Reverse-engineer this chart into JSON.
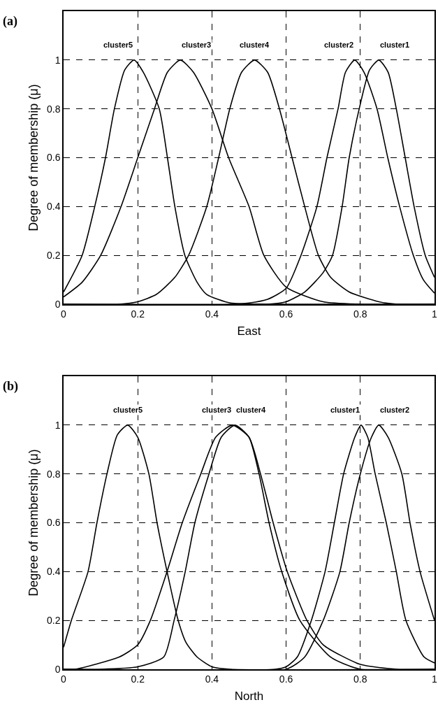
{
  "chart_data": [
    {
      "type": "line",
      "title": "(a)",
      "xlabel": "East",
      "ylabel": "Degree of membership (μ)",
      "xlim": [
        0,
        1
      ],
      "ylim": [
        0,
        1.2
      ],
      "xticks": [
        0,
        0.2,
        0.4,
        0.6,
        0.8,
        1
      ],
      "yticks": [
        0,
        0.2,
        0.4,
        0.6,
        0.8,
        1
      ],
      "grid": true,
      "marker": "none",
      "line_style": "solid",
      "series": [
        {
          "name": "cluster5",
          "color": "#000000",
          "x": [
            0,
            0.05,
            0.084,
            0.113,
            0.137,
            0.165,
            0.19,
            0.215,
            0.258,
            0.28,
            0.3,
            0.327,
            0.36,
            0.386,
            0.45,
            0.55,
            1
          ],
          "values": [
            0.05,
            0.2,
            0.4,
            0.6,
            0.8,
            0.96,
            1,
            0.95,
            0.8,
            0.6,
            0.4,
            0.2,
            0.09,
            0.04,
            0.005,
            0,
            0
          ]
        },
        {
          "name": "cluster3",
          "color": "#000000",
          "x": [
            0,
            0.05,
            0.1,
            0.155,
            0.2,
            0.245,
            0.28,
            0.315,
            0.35,
            0.4,
            0.445,
            0.5,
            0.54,
            0.6,
            0.7,
            0.8,
            1
          ],
          "values": [
            0.03,
            0.09,
            0.2,
            0.4,
            0.6,
            0.8,
            0.95,
            1,
            0.95,
            0.8,
            0.6,
            0.4,
            0.2,
            0.07,
            0.01,
            0,
            0
          ]
        },
        {
          "name": "cluster4",
          "color": "#000000",
          "x": [
            0,
            0.15,
            0.2,
            0.25,
            0.3,
            0.337,
            0.386,
            0.418,
            0.448,
            0.48,
            0.515,
            0.55,
            0.582,
            0.616,
            0.65,
            0.687,
            0.72,
            0.77,
            0.85,
            0.9,
            1
          ],
          "values": [
            0,
            0,
            0.01,
            0.04,
            0.11,
            0.2,
            0.4,
            0.6,
            0.8,
            0.95,
            1,
            0.95,
            0.8,
            0.6,
            0.4,
            0.2,
            0.11,
            0.05,
            0.01,
            0,
            0
          ]
        },
        {
          "name": "cluster2",
          "color": "#000000",
          "x": [
            0,
            0.45,
            0.5,
            0.55,
            0.6,
            0.64,
            0.683,
            0.71,
            0.74,
            0.76,
            0.785,
            0.81,
            0.845,
            0.874,
            0.906,
            0.943,
            0.97,
            1
          ],
          "values": [
            0,
            0,
            0.005,
            0.02,
            0.065,
            0.2,
            0.4,
            0.6,
            0.8,
            0.95,
            1,
            0.95,
            0.8,
            0.6,
            0.4,
            0.2,
            0.1,
            0.045
          ]
        },
        {
          "name": "cluster1",
          "color": "#000000",
          "x": [
            0,
            0.55,
            0.6,
            0.65,
            0.7,
            0.725,
            0.751,
            0.77,
            0.797,
            0.825,
            0.85,
            0.875,
            0.897,
            0.921,
            0.945,
            0.975,
            1
          ],
          "values": [
            0,
            0,
            0.01,
            0.05,
            0.13,
            0.2,
            0.4,
            0.6,
            0.8,
            0.96,
            1,
            0.95,
            0.8,
            0.6,
            0.4,
            0.2,
            0.11
          ]
        }
      ]
    },
    {
      "type": "line",
      "title": "(b)",
      "xlabel": "North",
      "ylabel": "Degree of membership (μ)",
      "xlim": [
        0,
        1
      ],
      "ylim": [
        0,
        1.2
      ],
      "xticks": [
        0,
        0.2,
        0.4,
        0.6,
        0.8,
        1
      ],
      "yticks": [
        0,
        0.2,
        0.4,
        0.6,
        0.8,
        1
      ],
      "grid": true,
      "marker": "none",
      "line_style": "solid",
      "series": [
        {
          "name": "cluster5",
          "color": "#000000",
          "x": [
            0,
            0.021,
            0.066,
            0.09,
            0.117,
            0.145,
            0.173,
            0.2,
            0.23,
            0.252,
            0.279,
            0.309,
            0.33,
            0.36,
            0.4,
            0.45,
            1
          ],
          "values": [
            0.09,
            0.2,
            0.4,
            0.6,
            0.8,
            0.96,
            1,
            0.95,
            0.8,
            0.6,
            0.4,
            0.2,
            0.11,
            0.05,
            0.01,
            0,
            0
          ]
        },
        {
          "name": "cluster3",
          "color": "#000000",
          "x": [
            0,
            0.03,
            0.15,
            0.2,
            0.234,
            0.279,
            0.32,
            0.37,
            0.41,
            0.455,
            0.5,
            0.531,
            0.565,
            0.603,
            0.656,
            0.7,
            0.8,
            0.9,
            1
          ],
          "values": [
            0,
            0,
            0.05,
            0.1,
            0.2,
            0.4,
            0.6,
            0.8,
            0.95,
            1,
            0.95,
            0.8,
            0.6,
            0.4,
            0.2,
            0.1,
            0.02,
            0,
            0
          ]
        },
        {
          "name": "cluster4",
          "color": "#000000",
          "x": [
            0,
            0.1,
            0.2,
            0.27,
            0.298,
            0.328,
            0.354,
            0.392,
            0.425,
            0.462,
            0.5,
            0.527,
            0.554,
            0.588,
            0.637,
            0.72,
            0.8,
            1
          ],
          "values": [
            0,
            0,
            0.01,
            0.05,
            0.2,
            0.4,
            0.6,
            0.8,
            0.95,
            1,
            0.95,
            0.8,
            0.6,
            0.4,
            0.2,
            0.05,
            0,
            0
          ]
        },
        {
          "name": "cluster1",
          "color": "#000000",
          "x": [
            0,
            0.57,
            0.6,
            0.63,
            0.668,
            0.705,
            0.73,
            0.755,
            0.785,
            0.802,
            0.82,
            0.84,
            0.87,
            0.897,
            0.923,
            0.972,
            1
          ],
          "values": [
            0,
            0,
            0.01,
            0.05,
            0.2,
            0.4,
            0.6,
            0.8,
            0.95,
            1,
            0.95,
            0.8,
            0.6,
            0.4,
            0.2,
            0.05,
            0.026
          ]
        },
        {
          "name": "cluster2",
          "color": "#000000",
          "x": [
            0,
            0.6,
            0.65,
            0.7,
            0.745,
            0.77,
            0.8,
            0.83,
            0.85,
            0.875,
            0.912,
            0.934,
            0.961,
            1
          ],
          "values": [
            0,
            0,
            0.05,
            0.2,
            0.4,
            0.6,
            0.8,
            0.95,
            1,
            0.95,
            0.8,
            0.6,
            0.4,
            0.2
          ]
        }
      ]
    }
  ]
}
